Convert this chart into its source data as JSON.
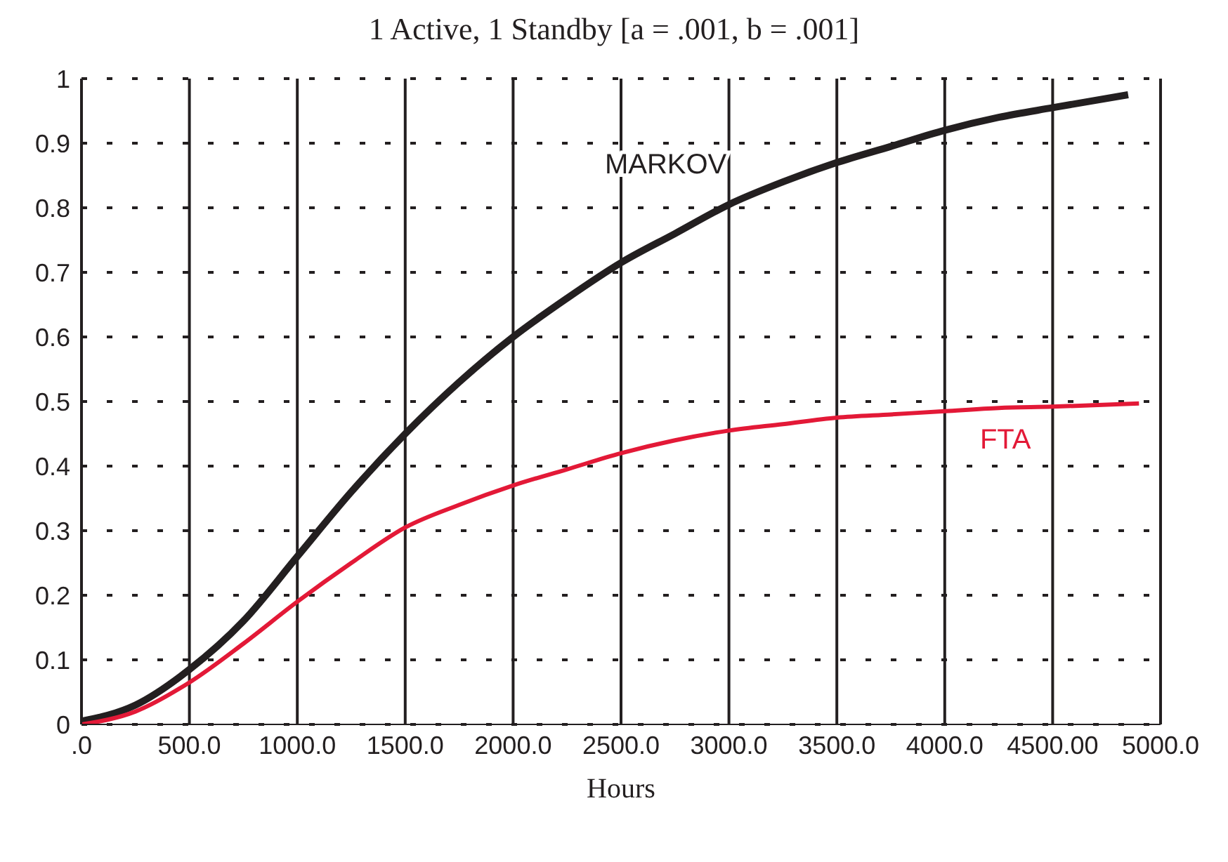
{
  "chart_data": {
    "type": "line",
    "title": "1 Active, 1 Standby [a = .001, b = .001]",
    "xlabel": "Hours",
    "xlim": [
      0,
      5000
    ],
    "xticks": [
      {
        "value": 0,
        "label": ".0"
      },
      {
        "value": 500,
        "label": "500.0"
      },
      {
        "value": 1000,
        "label": "1000.0"
      },
      {
        "value": 1500,
        "label": "1500.0"
      },
      {
        "value": 2000,
        "label": "2000.0"
      },
      {
        "value": 2500,
        "label": "2500.0"
      },
      {
        "value": 3000,
        "label": "3000.0"
      },
      {
        "value": 3500,
        "label": "3500.0"
      },
      {
        "value": 4000,
        "label": "4000.0"
      },
      {
        "value": 4500,
        "label": "4500.00"
      },
      {
        "value": 5000,
        "label": "5000.0"
      }
    ],
    "ylim": [
      0,
      1
    ],
    "yticks": [
      0,
      0.1,
      0.2,
      0.3,
      0.4,
      0.5,
      0.6,
      0.7,
      0.8,
      0.9,
      1
    ],
    "grid": true,
    "legend": false,
    "marker": "none",
    "line_style": "solid",
    "series": [
      {
        "name": "MARKOV",
        "color": "#231f20",
        "x": [
          0,
          250,
          500,
          750,
          1000,
          1250,
          1500,
          1750,
          2000,
          2250,
          2500,
          2750,
          3000,
          3250,
          3500,
          3750,
          4000,
          4250,
          4500,
          4850
        ],
        "values": [
          0.005,
          0.03,
          0.085,
          0.16,
          0.26,
          0.36,
          0.45,
          0.53,
          0.6,
          0.66,
          0.715,
          0.76,
          0.805,
          0.84,
          0.87,
          0.895,
          0.92,
          0.94,
          0.955,
          0.975
        ]
      },
      {
        "name": "FTA",
        "color": "#e31937",
        "x": [
          0,
          250,
          500,
          750,
          1000,
          1250,
          1500,
          1750,
          2000,
          2250,
          2500,
          2750,
          3000,
          3250,
          3500,
          3750,
          4000,
          4250,
          4500,
          4900
        ],
        "values": [
          0,
          0.02,
          0.065,
          0.125,
          0.19,
          0.25,
          0.305,
          0.34,
          0.37,
          0.395,
          0.42,
          0.44,
          0.455,
          0.465,
          0.475,
          0.48,
          0.485,
          0.49,
          0.492,
          0.497
        ]
      }
    ]
  }
}
